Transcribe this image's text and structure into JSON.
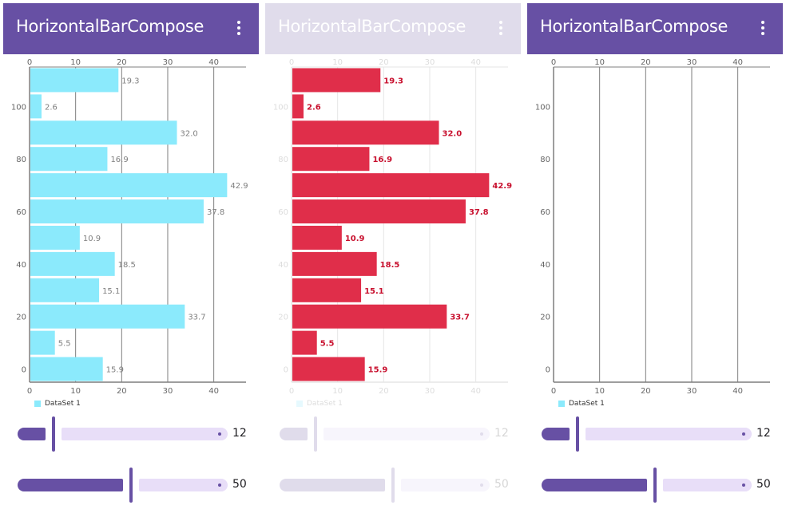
{
  "colors": {
    "primary": "#6750A4",
    "primary_disabled": "#E0DCEB",
    "track_inactive": "#E8DEF8",
    "track_inactive_disabled": "#F7F5FC",
    "bar_cyan": "#8BEAFC",
    "bar_red": "#E02E4A",
    "value_red": "#C8102E"
  },
  "panels": [
    {
      "title": "HorizontalBarCompose",
      "menu_icon": "more-vert-icon",
      "state": "enabled",
      "legend": "DataSet 1",
      "sliders": [
        {
          "value": 12,
          "label": "12",
          "fraction": 0.12
        },
        {
          "value": 50,
          "label": "50",
          "fraction": 0.5
        }
      ]
    },
    {
      "title": "HorizontalBarCompose",
      "menu_icon": "more-vert-icon",
      "state": "disabled",
      "legend": "DataSet 1",
      "sliders": [
        {
          "value": 12,
          "label": "12",
          "fraction": 0.12
        },
        {
          "value": 50,
          "label": "50",
          "fraction": 0.5
        }
      ]
    },
    {
      "title": "HorizontalBarCompose",
      "menu_icon": "more-vert-icon",
      "state": "enabled",
      "legend": "DataSet 1",
      "sliders": [
        {
          "value": 12,
          "label": "12",
          "fraction": 0.12
        },
        {
          "value": 50,
          "label": "50",
          "fraction": 0.5
        }
      ]
    }
  ],
  "chart_data": [
    {
      "type": "bar",
      "orientation": "horizontal",
      "title": "",
      "series": [
        {
          "name": "DataSet 1",
          "x": [
            0,
            10,
            20,
            30,
            40,
            50,
            60,
            70,
            80,
            90,
            100,
            110
          ],
          "values": [
            15.9,
            5.5,
            33.7,
            15.1,
            18.5,
            10.9,
            37.8,
            42.9,
            16.9,
            32.0,
            2.6,
            19.3
          ]
        }
      ],
      "value_labels": [
        "15.9",
        "5.5",
        "33.7",
        "15.1",
        "18.5",
        "10.9",
        "37.8",
        "42.9",
        "16.9",
        "32.0",
        "2.6",
        "19.3"
      ],
      "value_ticks": [
        "0",
        "10",
        "20",
        "30",
        "40"
      ],
      "category_ticks": [
        "0",
        "20",
        "40",
        "60",
        "80",
        "100"
      ],
      "value_range": [
        0,
        47
      ],
      "category_range": [
        -5,
        115
      ],
      "grid": true,
      "legend": "bottom-left"
    },
    {
      "type": "bar",
      "orientation": "horizontal",
      "title": "",
      "series": [
        {
          "name": "DataSet 1",
          "x": [
            0,
            10,
            20,
            30,
            40,
            50,
            60,
            70,
            80,
            90,
            100,
            110
          ],
          "values": [
            15.9,
            5.5,
            33.7,
            15.1,
            18.5,
            10.9,
            37.8,
            42.9,
            16.9,
            32.0,
            2.6,
            19.3
          ]
        }
      ],
      "value_labels": [
        "15.9",
        "5.5",
        "33.7",
        "15.1",
        "18.5",
        "10.9",
        "37.8",
        "42.9",
        "16.9",
        "32.0",
        "2.6",
        "19.3"
      ],
      "value_ticks": [
        "0",
        "10",
        "20",
        "30",
        "40"
      ],
      "category_ticks": [
        "0",
        "20",
        "40",
        "60",
        "80",
        "100"
      ],
      "value_range": [
        0,
        47
      ],
      "category_range": [
        -5,
        115
      ],
      "grid": true,
      "legend": "bottom-left"
    },
    {
      "type": "bar",
      "orientation": "horizontal",
      "title": "",
      "series": [
        {
          "name": "DataSet 1",
          "x": [],
          "values": []
        }
      ],
      "value_labels": [],
      "value_ticks": [
        "0",
        "10",
        "20",
        "30",
        "40"
      ],
      "category_ticks": [
        "0",
        "20",
        "40",
        "60",
        "80",
        "100"
      ],
      "value_range": [
        0,
        47
      ],
      "category_range": [
        -5,
        115
      ],
      "grid": true,
      "legend": "bottom-left"
    }
  ]
}
